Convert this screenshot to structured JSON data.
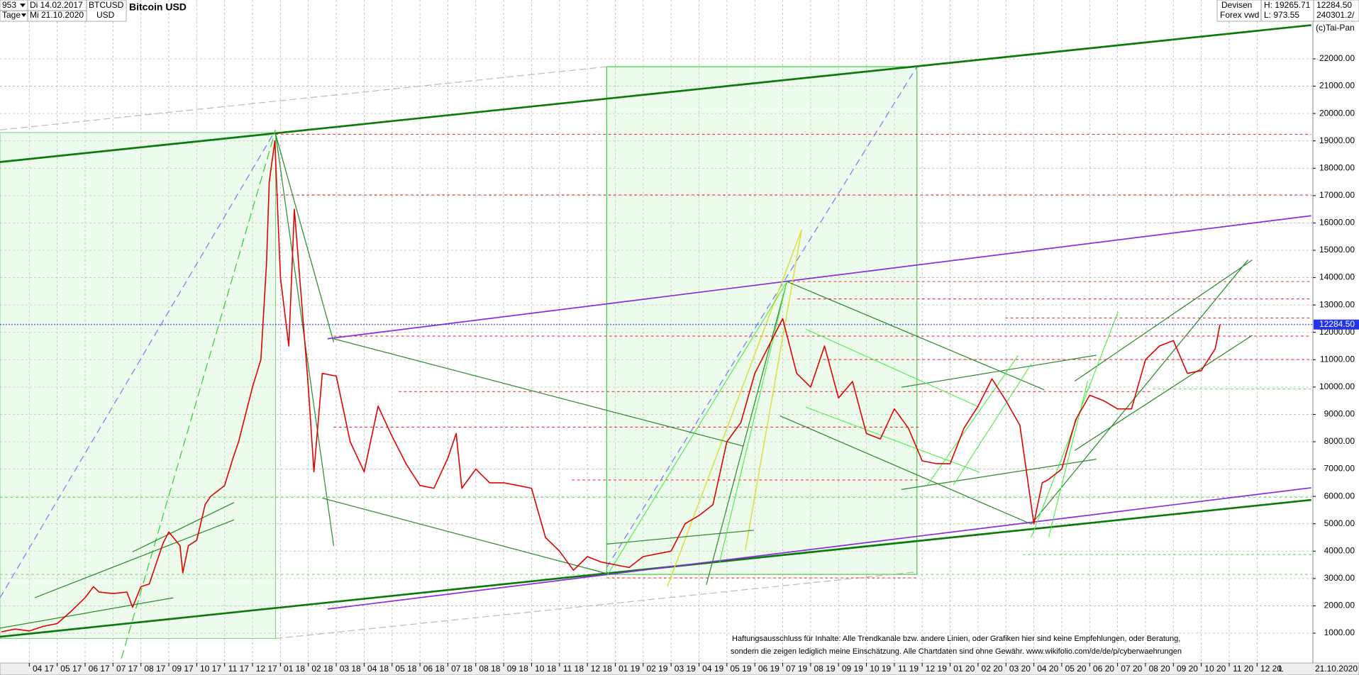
{
  "header": {
    "bars": "953",
    "start": "Di 14.02.2017",
    "period": "Tage",
    "end": "Mi 21.10.2020",
    "symbol": "BTCUSD",
    "currency": "USD",
    "market": "Devisen",
    "source": "Forex vwd",
    "high": "H: 19265.71",
    "low": "L: 973.55",
    "last": "12284.50",
    "volume": "240301.2/",
    "copyright": "(c)Tai-Pan"
  },
  "footer": {
    "date": "21.10.2020",
    "scale": "L"
  },
  "chart_data": {
    "type": "line",
    "title": "Bitcoin USD",
    "color": "#e00000",
    "grid": true,
    "x": [
      2.0,
      2.5,
      3.0,
      3.5,
      4.0,
      4.5,
      5.0,
      5.3,
      5.5,
      6.0,
      6.5,
      6.7,
      7.0,
      7.3,
      7.5,
      7.8,
      8.0,
      8.4,
      8.5,
      8.7,
      9.0,
      9.3,
      9.5,
      10.0,
      10.3,
      10.5,
      11.0,
      11.3,
      11.5,
      11.6,
      11.8,
      12.0,
      12.3,
      12.5,
      13.0,
      13.2,
      13.5,
      14.0,
      14.5,
      15.0,
      15.5,
      16.0,
      16.5,
      17.0,
      17.5,
      18.0,
      18.3,
      18.5,
      19.0,
      19.5,
      20.0,
      20.5,
      21.0,
      21.5,
      22.0,
      22.5,
      23.0,
      23.5,
      24.0,
      24.5,
      25.0,
      26.0,
      26.5,
      27.0,
      27.5,
      28.0,
      28.5,
      29.0,
      29.5,
      30.0,
      30.5,
      31.0,
      31.5,
      32.0,
      32.5,
      33.0,
      33.5,
      34.0,
      34.5,
      35.0,
      35.5,
      36.0,
      36.5,
      37.0,
      37.5,
      38.0,
      38.5,
      39.0,
      39.3,
      39.5,
      40.0,
      40.5,
      41.0,
      41.5,
      42.0,
      42.5,
      43.0,
      43.5,
      44.0,
      44.5,
      45.0,
      45.5,
      45.67
    ],
    "values": [
      1050,
      1150,
      1080,
      1250,
      1350,
      1800,
      2300,
      2700,
      2500,
      2450,
      2500,
      1950,
      2700,
      2800,
      3400,
      4300,
      4700,
      4200,
      3200,
      4200,
      4400,
      5700,
      6000,
      6400,
      7400,
      8000,
      10000,
      11000,
      14500,
      17500,
      19000,
      14000,
      11500,
      16500,
      10000,
      6900,
      10500,
      10400,
      8000,
      6900,
      9300,
      8200,
      7200,
      6400,
      6300,
      7400,
      8300,
      6300,
      7000,
      6500,
      6500,
      6400,
      6300,
      4500,
      4000,
      3300,
      3800,
      3600,
      3500,
      3400,
      3800,
      4000,
      5000,
      5300,
      5700,
      8000,
      8700,
      10500,
      11500,
      12500,
      10500,
      10000,
      11500,
      9600,
      10200,
      8300,
      8100,
      9200,
      8500,
      7300,
      7200,
      7200,
      8500,
      9300,
      10300,
      9500,
      8600,
      5000,
      6500,
      6600,
      7000,
      8800,
      9700,
      9500,
      9200,
      9200,
      11000,
      11500,
      11700,
      10500,
      10600,
      11400,
      12284.5
    ],
    "xlim": [
      1.95,
      49.0
    ],
    "ylim": [
      -89,
      24152
    ],
    "yticks": [
      {
        "value": 1000,
        "label": "1000.00"
      },
      {
        "value": 2000,
        "label": "2000.00"
      },
      {
        "value": 3000,
        "label": "3000.00"
      },
      {
        "value": 4000,
        "label": "4000.00"
      },
      {
        "value": 5000,
        "label": "5000.00"
      },
      {
        "value": 6000,
        "label": "6000.00"
      },
      {
        "value": 7000,
        "label": "7000.00"
      },
      {
        "value": 8000,
        "label": "8000.00"
      },
      {
        "value": 9000,
        "label": "9000.00"
      },
      {
        "value": 10000,
        "label": "10000.00"
      },
      {
        "value": 11000,
        "label": "11000.00"
      },
      {
        "value": 12000,
        "label": "12000.00"
      },
      {
        "value": 13000,
        "label": "13000.00"
      },
      {
        "value": 14000,
        "label": "14000.00"
      },
      {
        "value": 15000,
        "label": "15000.00"
      },
      {
        "value": 16000,
        "label": "16000.00"
      },
      {
        "value": 17000,
        "label": "17000.00"
      },
      {
        "value": 18000,
        "label": "18000.00"
      },
      {
        "value": 19000,
        "label": "19000.00"
      },
      {
        "value": 20000,
        "label": "20000.00"
      },
      {
        "value": 21000,
        "label": "21000.00"
      },
      {
        "value": 22000,
        "label": "22000.00"
      }
    ],
    "xticks": [
      {
        "value": 3,
        "label": "04 17"
      },
      {
        "value": 4,
        "label": "05 17"
      },
      {
        "value": 5,
        "label": "06 17"
      },
      {
        "value": 6,
        "label": "07 17"
      },
      {
        "value": 7,
        "label": "08 17"
      },
      {
        "value": 8,
        "label": "09 17"
      },
      {
        "value": 9,
        "label": "10 17"
      },
      {
        "value": 10,
        "label": "11 17"
      },
      {
        "value": 11,
        "label": "12 17"
      },
      {
        "value": 12,
        "label": "01 18"
      },
      {
        "value": 13,
        "label": "02 18"
      },
      {
        "value": 14,
        "label": "03 18"
      },
      {
        "value": 15,
        "label": "04 18"
      },
      {
        "value": 16,
        "label": "05 18"
      },
      {
        "value": 17,
        "label": "06 18"
      },
      {
        "value": 18,
        "label": "07 18"
      },
      {
        "value": 19,
        "label": "08 18"
      },
      {
        "value": 20,
        "label": "09 18"
      },
      {
        "value": 21,
        "label": "10 18"
      },
      {
        "value": 22,
        "label": "11 18"
      },
      {
        "value": 23,
        "label": "12 18"
      },
      {
        "value": 24,
        "label": "01 19"
      },
      {
        "value": 25,
        "label": "02 19"
      },
      {
        "value": 26,
        "label": "03 19"
      },
      {
        "value": 27,
        "label": "04 19"
      },
      {
        "value": 28,
        "label": "05 19"
      },
      {
        "value": 29,
        "label": "06 19"
      },
      {
        "value": 30,
        "label": "07 19"
      },
      {
        "value": 31,
        "label": "08 19"
      },
      {
        "value": 32,
        "label": "09 19"
      },
      {
        "value": 33,
        "label": "10 19"
      },
      {
        "value": 34,
        "label": "11 19"
      },
      {
        "value": 35,
        "label": "12 19"
      },
      {
        "value": 36,
        "label": "01 20"
      },
      {
        "value": 37,
        "label": "02 20"
      },
      {
        "value": 38,
        "label": "03 20"
      },
      {
        "value": 39,
        "label": "04 20"
      },
      {
        "value": 40,
        "label": "05 20"
      },
      {
        "value": 41,
        "label": "06 20"
      },
      {
        "value": 42,
        "label": "07 20"
      },
      {
        "value": 43,
        "label": "08 20"
      },
      {
        "value": 44,
        "label": "09 20"
      },
      {
        "value": 45,
        "label": "10 20"
      },
      {
        "value": 46,
        "label": "11 20"
      },
      {
        "value": 47,
        "label": "12 20"
      }
    ],
    "last_price": {
      "value": 12284.5,
      "label": "12284.50"
    },
    "annotations": [
      "Haftungsausschluss für Inhalte: Alle Trendkanäle bzw. andere Linien, oder Grafiken hier sind keine Empfehlungen, oder Beratung,",
      "sondern die zeigen lediglich meine  Einschätzung. Alle Chartdaten sind ohne Gewähr.  www.wikifolio.com/de/de/p/cyberwaehrungen"
    ]
  }
}
